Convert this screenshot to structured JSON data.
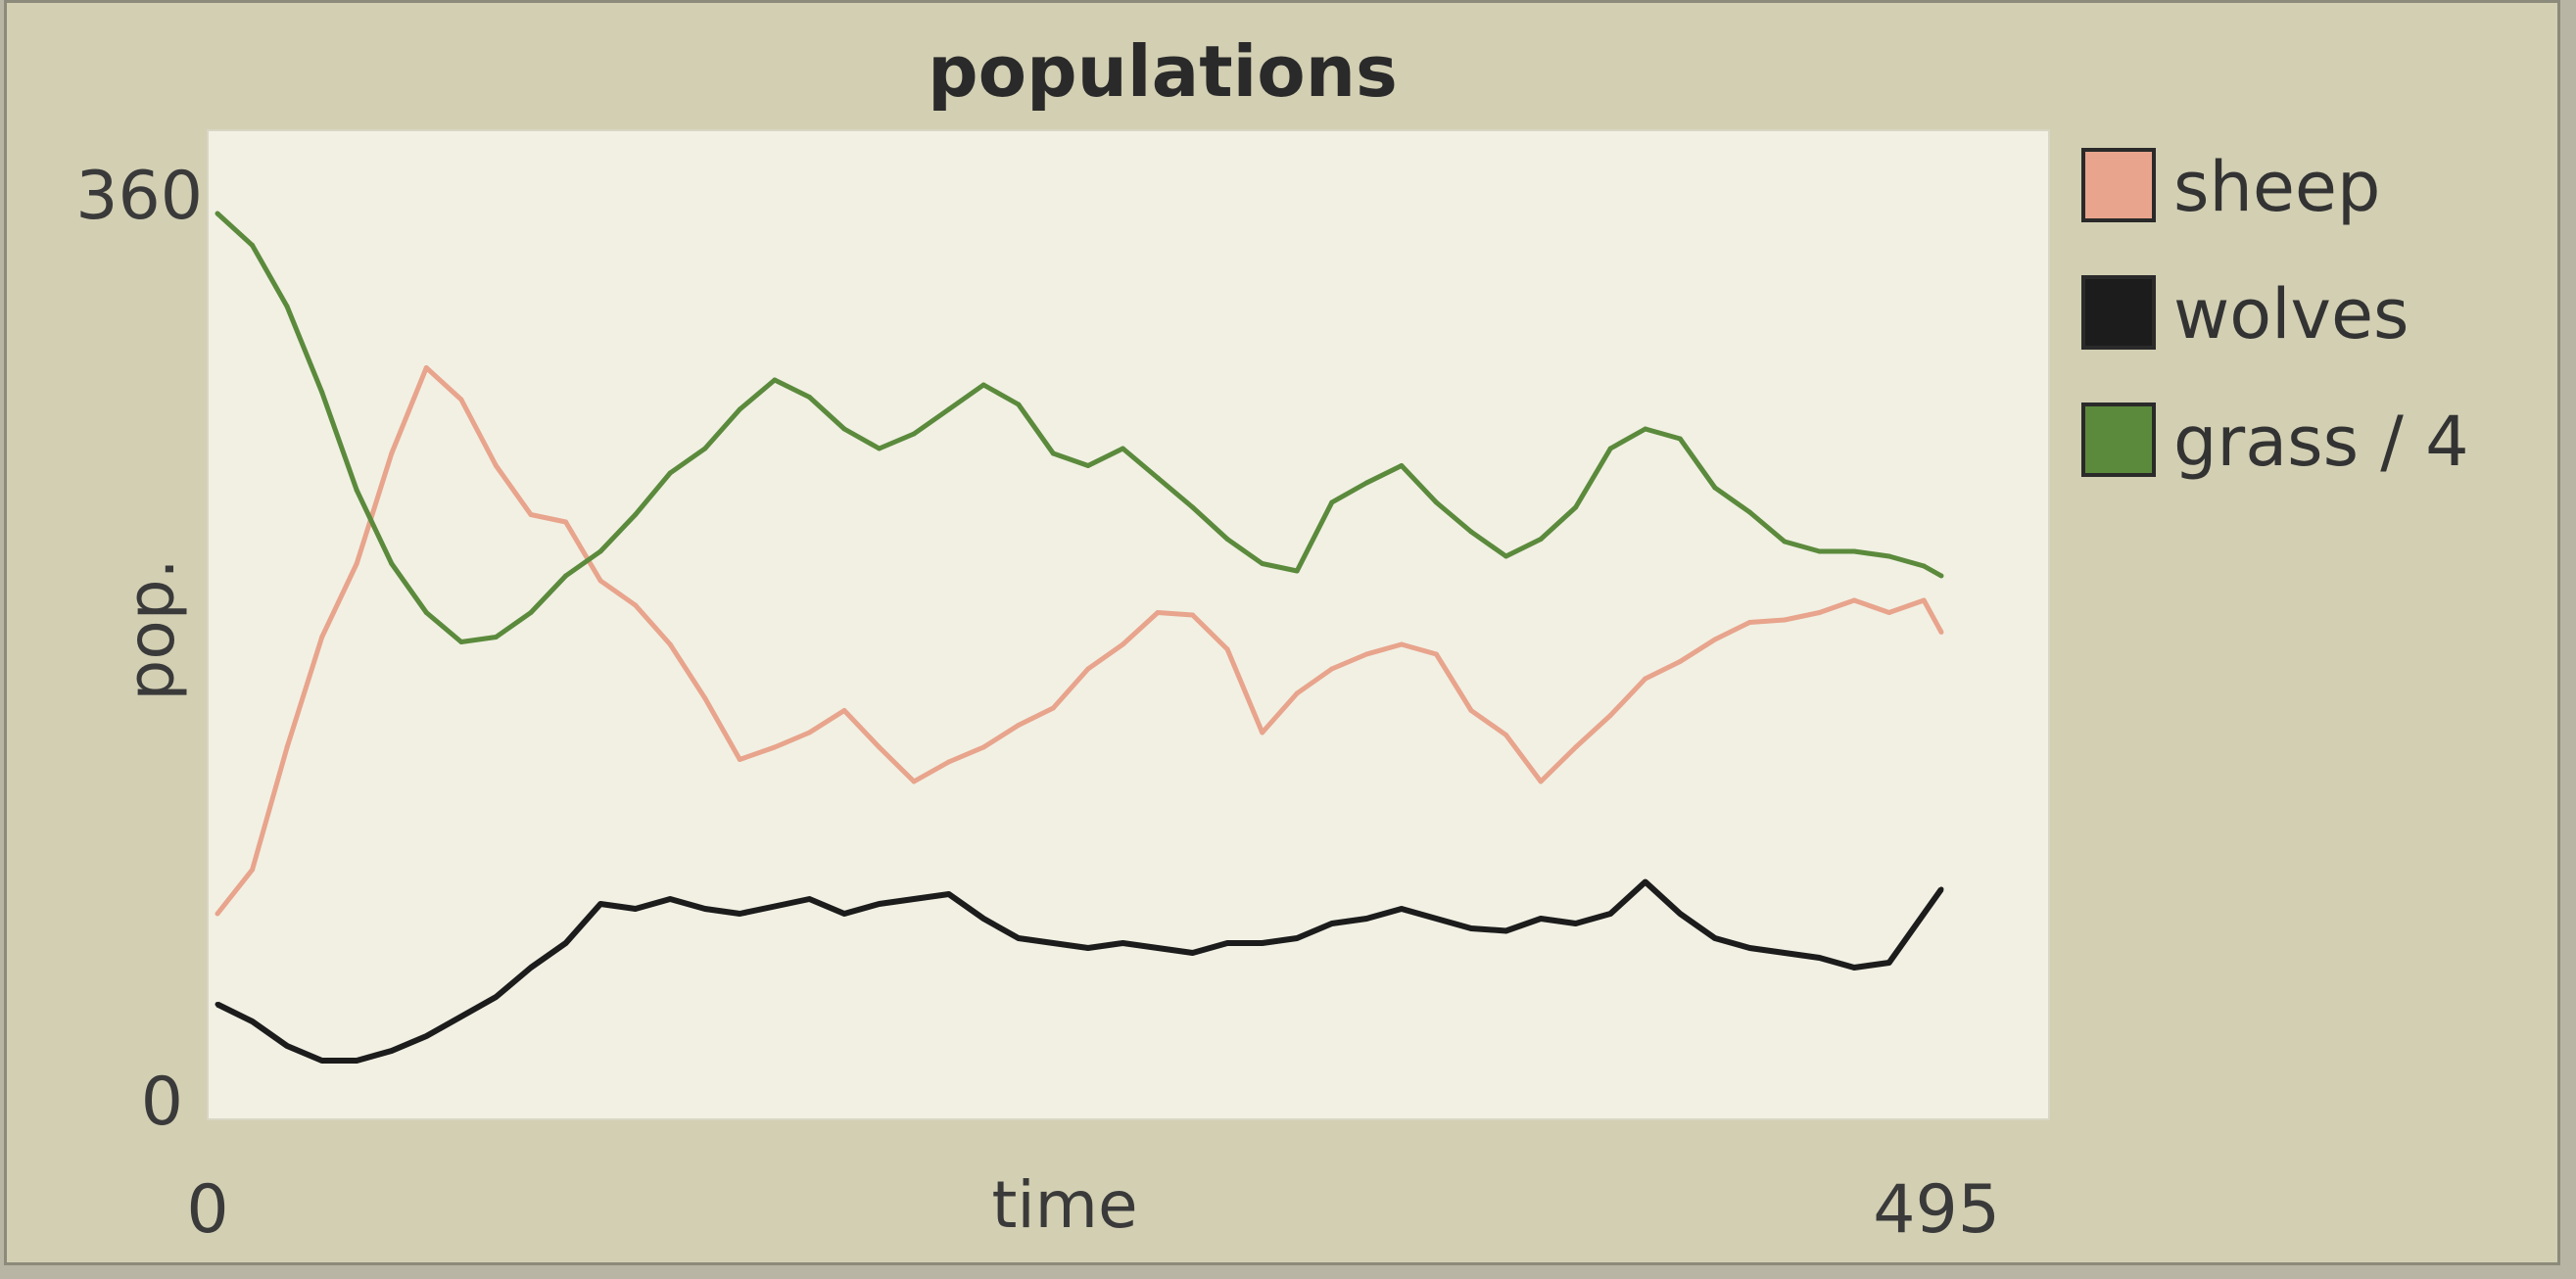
{
  "chart_data": {
    "type": "line",
    "title": "populations",
    "xlabel": "time",
    "ylabel": "pop.",
    "xlim": [
      0,
      495
    ],
    "ylim": [
      0,
      360
    ],
    "x_tick_labels": [
      "0",
      "495"
    ],
    "y_tick_labels": [
      "0",
      "360"
    ],
    "legend_position": "right",
    "grid": false,
    "series": [
      {
        "name": "sheep",
        "color": "#e8a48c",
        "x": [
          0,
          10,
          20,
          30,
          40,
          50,
          60,
          70,
          80,
          90,
          100,
          110,
          120,
          130,
          140,
          150,
          160,
          170,
          180,
          190,
          200,
          210,
          220,
          230,
          240,
          250,
          260,
          270,
          280,
          290,
          300,
          310,
          320,
          330,
          340,
          350,
          360,
          370,
          380,
          390,
          400,
          410,
          420,
          430,
          440,
          450,
          460,
          470,
          480,
          490,
          495
        ],
        "y": [
          72,
          90,
          140,
          185,
          215,
          260,
          295,
          282,
          255,
          235,
          232,
          208,
          198,
          182,
          160,
          135,
          140,
          146,
          155,
          140,
          126,
          134,
          140,
          149,
          156,
          172,
          182,
          195,
          194,
          180,
          146,
          162,
          172,
          178,
          182,
          178,
          155,
          145,
          126,
          140,
          153,
          168,
          175,
          184,
          191,
          192,
          195,
          200,
          195,
          200,
          187
        ]
      },
      {
        "name": "wolves",
        "color": "#1c1c1c",
        "x": [
          0,
          10,
          20,
          30,
          40,
          50,
          60,
          70,
          80,
          90,
          100,
          110,
          120,
          130,
          140,
          150,
          160,
          170,
          180,
          190,
          200,
          210,
          220,
          230,
          240,
          250,
          260,
          270,
          280,
          290,
          300,
          310,
          320,
          330,
          340,
          350,
          360,
          370,
          380,
          390,
          400,
          410,
          420,
          430,
          440,
          450,
          460,
          470,
          480,
          490,
          495
        ],
        "y": [
          35,
          28,
          18,
          12,
          12,
          16,
          22,
          30,
          38,
          50,
          60,
          76,
          74,
          78,
          74,
          72,
          75,
          78,
          72,
          76,
          78,
          80,
          70,
          62,
          60,
          58,
          60,
          58,
          56,
          60,
          60,
          62,
          68,
          70,
          74,
          70,
          66,
          65,
          70,
          68,
          72,
          85,
          72,
          62,
          58,
          56,
          54,
          50,
          52,
          72,
          82
        ]
      },
      {
        "name": "grass / 4",
        "color": "#5b8a3c",
        "x": [
          0,
          10,
          20,
          30,
          40,
          50,
          60,
          70,
          80,
          90,
          100,
          110,
          120,
          130,
          140,
          150,
          160,
          170,
          180,
          190,
          200,
          210,
          220,
          230,
          240,
          250,
          260,
          270,
          280,
          290,
          300,
          310,
          320,
          330,
          340,
          350,
          360,
          370,
          380,
          390,
          400,
          410,
          420,
          430,
          440,
          450,
          460,
          470,
          480,
          490,
          495
        ],
        "y": [
          358,
          345,
          320,
          285,
          245,
          215,
          195,
          183,
          185,
          195,
          210,
          220,
          235,
          252,
          262,
          278,
          290,
          283,
          270,
          262,
          268,
          278,
          288,
          280,
          260,
          255,
          262,
          250,
          238,
          225,
          215,
          212,
          240,
          248,
          255,
          240,
          228,
          218,
          225,
          238,
          262,
          270,
          266,
          246,
          236,
          224,
          220,
          220,
          218,
          214,
          210
        ]
      }
    ]
  }
}
